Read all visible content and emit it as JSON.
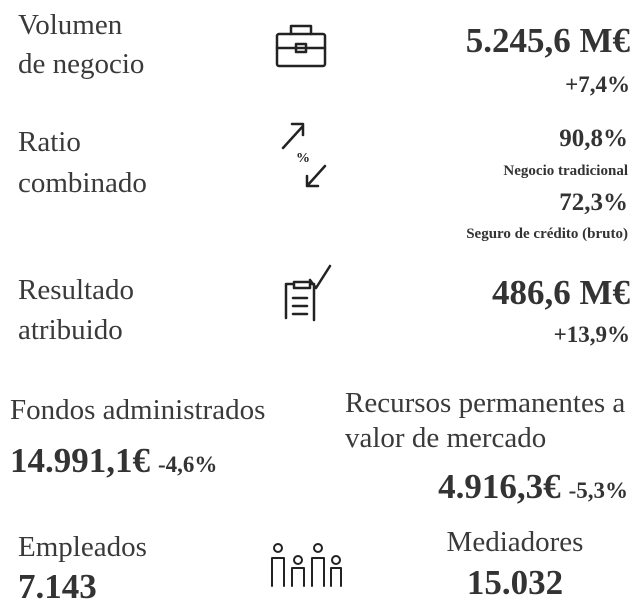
{
  "items": [
    {
      "label": [
        "Volumen",
        "de negocio"
      ],
      "value": "5.245,6 M€",
      "change": "+7,4%"
    },
    {
      "label": [
        "Ratio",
        "combinado"
      ],
      "values": [
        {
          "value": "90,8%",
          "note": "Negocio tradicional"
        },
        {
          "value": "72,3%",
          "note": "Seguro de crédito (bruto)"
        }
      ]
    },
    {
      "label": [
        "Resultado",
        "atribuido"
      ],
      "value": "486,6 M€",
      "change": "+13,9%"
    }
  ],
  "funds": {
    "left": {
      "label": "Fondos administrados",
      "value": "14.991,1€",
      "change": "-4,6%"
    },
    "right": {
      "label": [
        "Recursos permanentes a",
        "valor de mercado"
      ],
      "value": "4.916,3€",
      "change": "-5,3%"
    }
  },
  "people": {
    "employees": {
      "label": "Empleados",
      "value": "7.143"
    },
    "mediators": {
      "label": "Mediadores",
      "value": "15.032"
    }
  }
}
